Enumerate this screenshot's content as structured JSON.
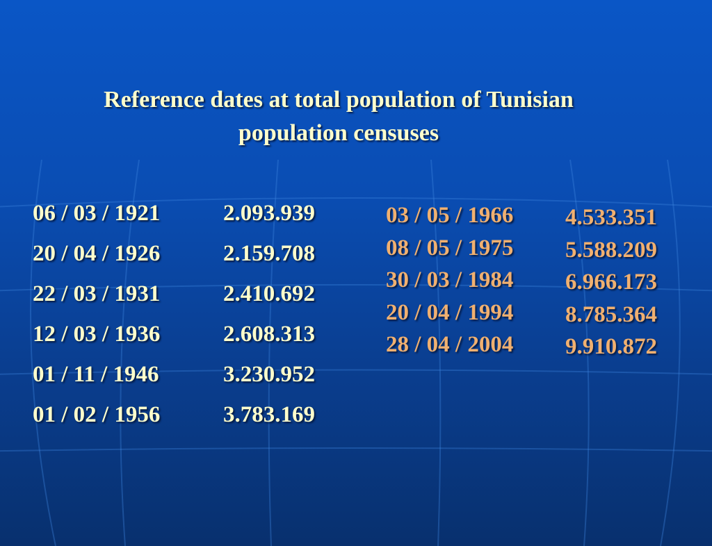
{
  "title": {
    "line1": "Reference dates at total population of Tunisian",
    "line2": "population censuses"
  },
  "colors": {
    "background_top": "#0a56c6",
    "background_bottom": "#08306e",
    "left_text": "#ffffcc",
    "right_text": "#f0b070"
  },
  "left_table": [
    {
      "date": "06 / 03 / 1921",
      "population": "2.093.939"
    },
    {
      "date": "20 / 04 / 1926",
      "population": "2.159.708"
    },
    {
      "date": "22 / 03 / 1931",
      "population": "2.410.692"
    },
    {
      "date": "12 / 03 / 1936",
      "population": "2.608.313"
    },
    {
      "date": "01 / 11 / 1946",
      "population": "3.230.952"
    },
    {
      "date": "01 / 02 / 1956",
      "population": "3.783.169"
    }
  ],
  "right_table": [
    {
      "date": "03 / 05 / 1966",
      "population": "4.533.351"
    },
    {
      "date": "08 / 05 / 1975",
      "population": "5.588.209"
    },
    {
      "date": "30 / 03 / 1984",
      "population": "6.966.173"
    },
    {
      "date": "20 / 04 / 1994",
      "population": "8.785.364"
    },
    {
      "date": "28 / 04 / 2004",
      "population": "9.910.872"
    }
  ]
}
